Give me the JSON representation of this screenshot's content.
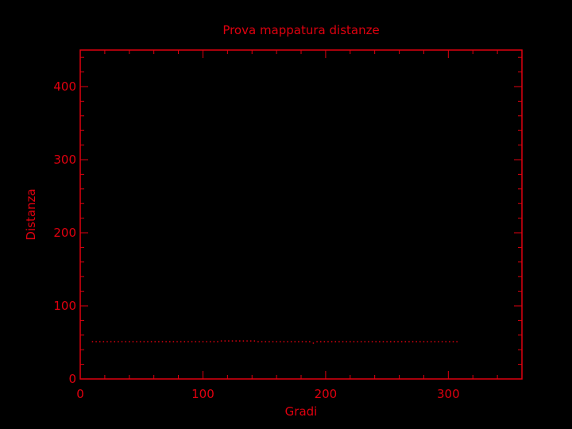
{
  "colors": {
    "background": "#000000",
    "foreground": "#e0000f"
  },
  "chart_data": {
    "type": "scatter",
    "title": "Prova mappatura distanze",
    "xlabel": "Gradi",
    "ylabel": "Distanza",
    "xlim": [
      0,
      360
    ],
    "ylim": [
      0,
      450
    ],
    "xticks": [
      0,
      100,
      200,
      300
    ],
    "yticks": [
      0,
      100,
      200,
      300,
      400
    ],
    "grid": false,
    "series": [
      {
        "marker": "dot",
        "x_start": 10,
        "x_step": 3,
        "values": [
          51,
          51,
          51,
          51,
          51,
          51,
          51,
          51,
          51,
          51,
          51,
          51,
          51,
          51,
          51,
          51,
          51,
          51,
          51,
          51,
          51,
          51,
          51,
          51,
          51,
          51,
          51,
          51,
          51,
          51,
          51,
          51,
          51,
          51,
          51,
          52,
          52,
          52,
          52,
          52,
          52,
          52,
          52,
          52,
          52,
          51,
          51,
          51,
          51,
          51,
          51,
          51,
          51,
          51,
          51,
          51,
          51,
          51,
          51,
          51,
          49,
          51,
          51,
          51,
          51,
          51,
          51,
          51,
          51,
          51,
          51,
          51,
          51,
          51,
          51,
          51,
          51,
          51,
          51,
          51,
          51,
          51,
          51,
          51,
          51,
          51,
          51,
          51,
          51,
          51,
          51,
          51,
          51,
          51,
          51,
          51,
          51,
          51,
          51,
          51
        ]
      }
    ]
  }
}
